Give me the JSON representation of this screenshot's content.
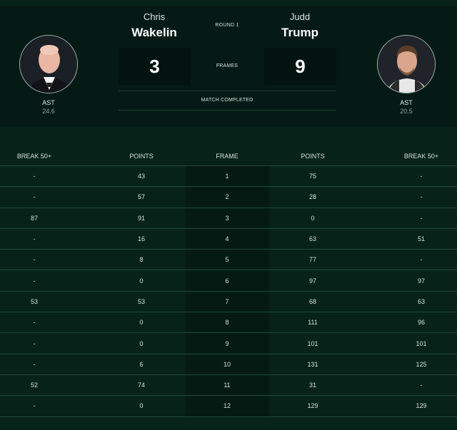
{
  "match": {
    "round": "ROUND 1",
    "frames_label": "FRAMES",
    "status": "MATCH COMPLETED"
  },
  "player1": {
    "first_name": "Chris",
    "last_name": "Wakelin",
    "score": "3",
    "stat_label": "AST",
    "stat_value": "24.6"
  },
  "player2": {
    "first_name": "Judd",
    "last_name": "Trump",
    "score": "9",
    "stat_label": "AST",
    "stat_value": "20.5"
  },
  "table": {
    "headers": [
      "BREAK 50+",
      "POINTS",
      "FRAME",
      "POINTS",
      "BREAK 50+"
    ],
    "rows": [
      [
        "-",
        "43",
        "1",
        "75",
        "-"
      ],
      [
        "-",
        "57",
        "2",
        "28",
        "-"
      ],
      [
        "87",
        "91",
        "3",
        "0",
        "-"
      ],
      [
        "-",
        "16",
        "4",
        "63",
        "51"
      ],
      [
        "-",
        "8",
        "5",
        "77",
        "-"
      ],
      [
        "-",
        "0",
        "6",
        "97",
        "97"
      ],
      [
        "53",
        "53",
        "7",
        "68",
        "63"
      ],
      [
        "-",
        "0",
        "8",
        "111",
        "96"
      ],
      [
        "-",
        "0",
        "9",
        "101",
        "101"
      ],
      [
        "-",
        "6",
        "10",
        "131",
        "125"
      ],
      [
        "52",
        "74",
        "11",
        "31",
        "-"
      ],
      [
        "-",
        "0",
        "12",
        "129",
        "129"
      ]
    ]
  }
}
